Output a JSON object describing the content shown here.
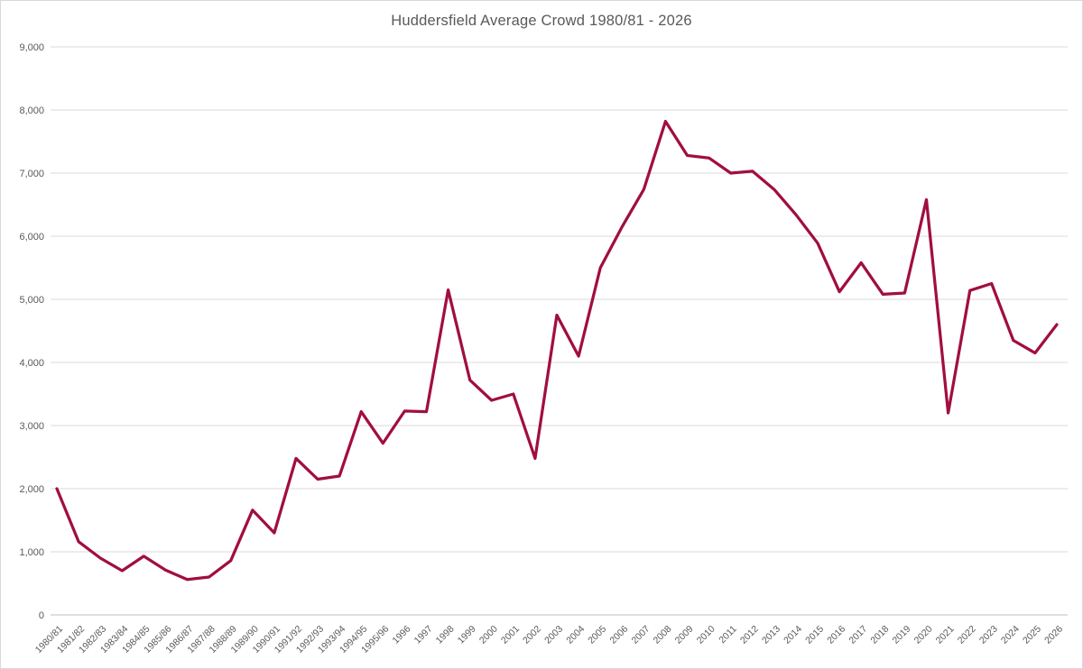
{
  "chart_data": {
    "type": "line",
    "title": "Huddersfield Average Crowd 1980/81 - 2026",
    "categories": [
      "1980/81",
      "1981/82",
      "1982/83",
      "1983/84",
      "1984/85",
      "1985/86",
      "1986/87",
      "1987/88",
      "1988/89",
      "1989/90",
      "1990/91",
      "1991/92",
      "1992/93",
      "1993/94",
      "1994/95",
      "1995/96",
      "1996",
      "1997",
      "1998",
      "1999",
      "2000",
      "2001",
      "2002",
      "2003",
      "2004",
      "2005",
      "2006",
      "2007",
      "2008",
      "2009",
      "2010",
      "2011",
      "2012",
      "2013",
      "2014",
      "2015",
      "2016",
      "2017",
      "2018",
      "2019",
      "2020",
      "2021",
      "2022",
      "2023",
      "2024",
      "2025",
      "2026"
    ],
    "series": [
      {
        "name": "Average Crowd",
        "values": [
          2000,
          1160,
          900,
          700,
          930,
          710,
          560,
          600,
          860,
          1660,
          1300,
          2480,
          2150,
          2200,
          3220,
          2720,
          3230,
          3220,
          5150,
          3720,
          3400,
          3500,
          2480,
          4750,
          4100,
          5500,
          6150,
          6740,
          7820,
          7280,
          7240,
          7000,
          7030,
          6740,
          6340,
          5890,
          5120,
          5580,
          5080,
          5100,
          6580,
          3200,
          5140,
          5250,
          4350,
          4150,
          4600
        ]
      }
    ],
    "xlabel": "",
    "ylabel": "",
    "ylim": [
      0,
      9000
    ],
    "ytick_step": 1000,
    "ytick_labels": [
      "0",
      "1,000",
      "2,000",
      "3,000",
      "4,000",
      "5,000",
      "6,000",
      "7,000",
      "8,000",
      "9,000"
    ],
    "grid": true,
    "legend_position": "none",
    "colors": {
      "line": "#a10e41",
      "title_text": "#595959",
      "axis_text": "#595959",
      "gridline": "#d9d9d9",
      "axis_line": "#bfbfbf",
      "frame_border": "#d9d9d9",
      "background": "#ffffff"
    }
  }
}
